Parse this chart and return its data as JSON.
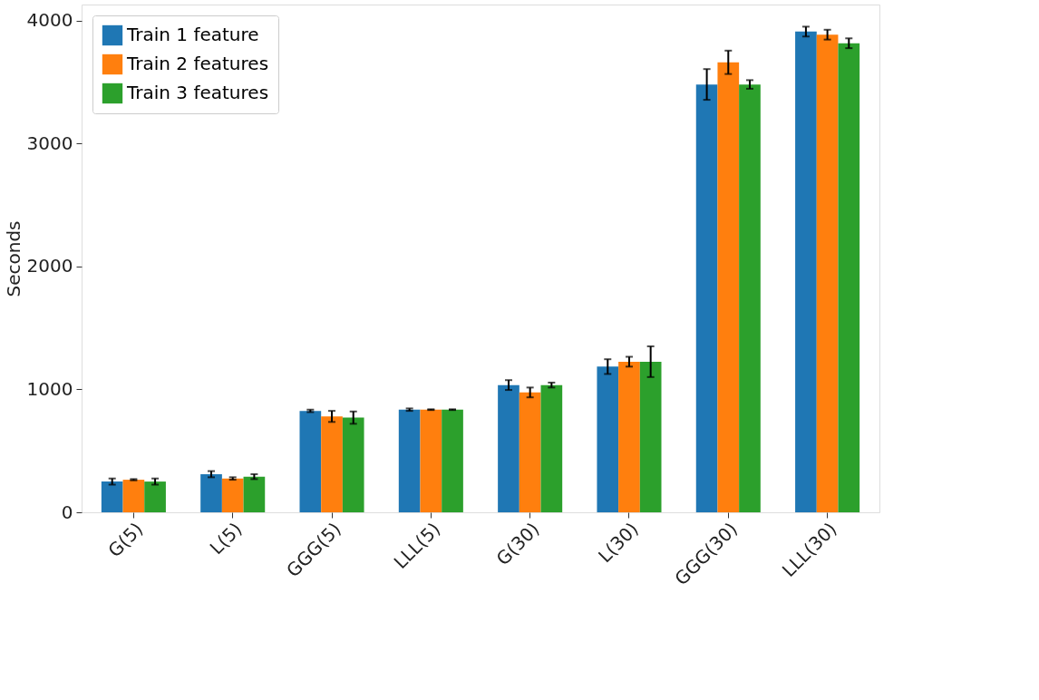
{
  "chart_data": {
    "type": "bar",
    "ylabel": "Seconds",
    "categories": [
      "G(5)",
      "L(5)",
      "GGG(5)",
      "LLL(5)",
      "G(30)",
      "L(30)",
      "GGG(30)",
      "LLL(30)"
    ],
    "series": [
      {
        "name": "Train 1 feature",
        "color": "#1f77b4",
        "values": [
          250,
          310,
          825,
          835,
          1035,
          1185,
          3480,
          3910
        ],
        "errors": [
          25,
          25,
          10,
          10,
          40,
          60,
          125,
          40
        ]
      },
      {
        "name": "Train 2 features",
        "color": "#ff7f0e",
        "values": [
          265,
          275,
          780,
          835,
          975,
          1225,
          3660,
          3885
        ],
        "errors": [
          5,
          10,
          45,
          3,
          40,
          40,
          95,
          40
        ]
      },
      {
        "name": "Train 3 features",
        "color": "#2ca02c",
        "values": [
          250,
          290,
          770,
          835,
          1035,
          1225,
          3480,
          3815
        ],
        "errors": [
          25,
          20,
          50,
          3,
          20,
          125,
          35,
          40
        ]
      }
    ],
    "ylim": [
      0,
      4130
    ],
    "yticks": [
      0,
      1000,
      2000,
      3000,
      4000
    ],
    "grid": false,
    "legend": "top left"
  }
}
